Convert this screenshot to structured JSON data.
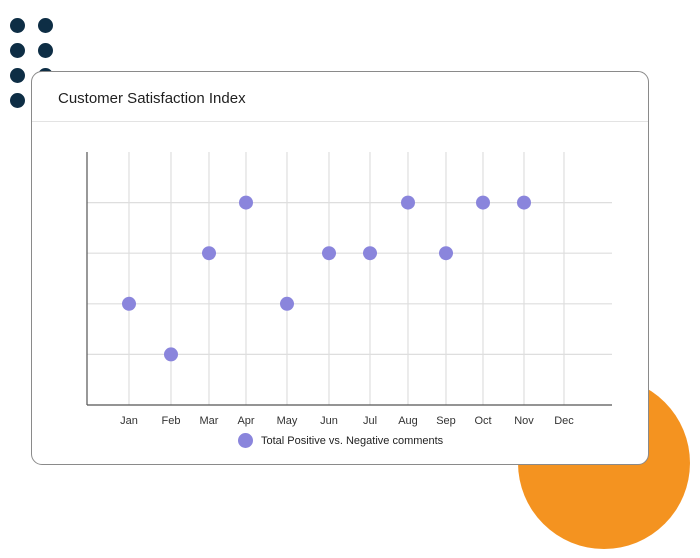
{
  "card": {
    "title": "Customer Satisfaction Index"
  },
  "colors": {
    "marker": "#8a85dc",
    "dots": "#0e2e45",
    "accent_circle": "#f49320",
    "grid": "#dedede",
    "axis": "#555555"
  },
  "chart_data": {
    "type": "scatter",
    "title": "Customer Satisfaction Index",
    "xlabel": "",
    "ylabel": "",
    "x": [
      "Jan",
      "Feb",
      "Mar",
      "Apr",
      "May",
      "Jun",
      "Jul",
      "Aug",
      "Sep",
      "Oct",
      "Nov",
      "Dec"
    ],
    "ylim": [
      0,
      5
    ],
    "grid": true,
    "y_tick_labels_shown": false,
    "legend_position": "bottom",
    "series": [
      {
        "name": "Total Positive vs. Negative comments",
        "values": [
          2,
          1,
          3,
          4,
          2,
          3,
          3,
          4,
          3,
          4,
          4,
          null
        ]
      }
    ]
  }
}
